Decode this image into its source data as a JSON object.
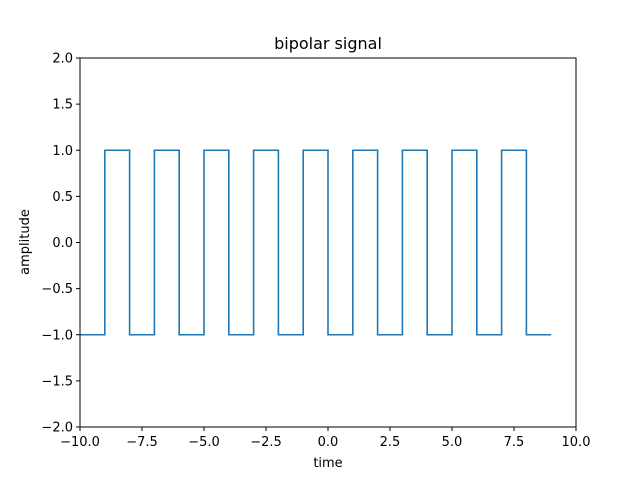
{
  "chart_data": {
    "type": "line",
    "title": "bipolar signal",
    "xlabel": "time",
    "ylabel": "amplitude",
    "xlim": [
      -10,
      10
    ],
    "ylim": [
      -2,
      2
    ],
    "xticks": [
      -10,
      -7.5,
      -5,
      -2.5,
      0,
      2.5,
      5,
      7.5,
      10
    ],
    "xtick_labels": [
      "−10.0",
      "−7.5",
      "−5.0",
      "−2.5",
      "0.0",
      "2.5",
      "5.0",
      "7.5",
      "10.0"
    ],
    "yticks": [
      -2,
      -1.5,
      -1,
      -0.5,
      0,
      0.5,
      1,
      1.5,
      2
    ],
    "ytick_labels": [
      "−2.0",
      "−1.5",
      "−1.0",
      "−0.5",
      "0.0",
      "0.5",
      "1.0",
      "1.5",
      "2.0"
    ],
    "grid": false,
    "series": [
      {
        "color": "#1f77b4",
        "drawstyle": "steps-post",
        "x": [
          -10,
          -9,
          -8,
          -7,
          -6,
          -5,
          -4,
          -3,
          -2,
          -1,
          0,
          1,
          2,
          3,
          4,
          5,
          6,
          7,
          8,
          9
        ],
        "y": [
          -1,
          1,
          -1,
          1,
          -1,
          1,
          -1,
          1,
          -1,
          1,
          -1,
          1,
          -1,
          1,
          -1,
          1,
          -1,
          1,
          -1,
          -1
        ]
      }
    ]
  }
}
